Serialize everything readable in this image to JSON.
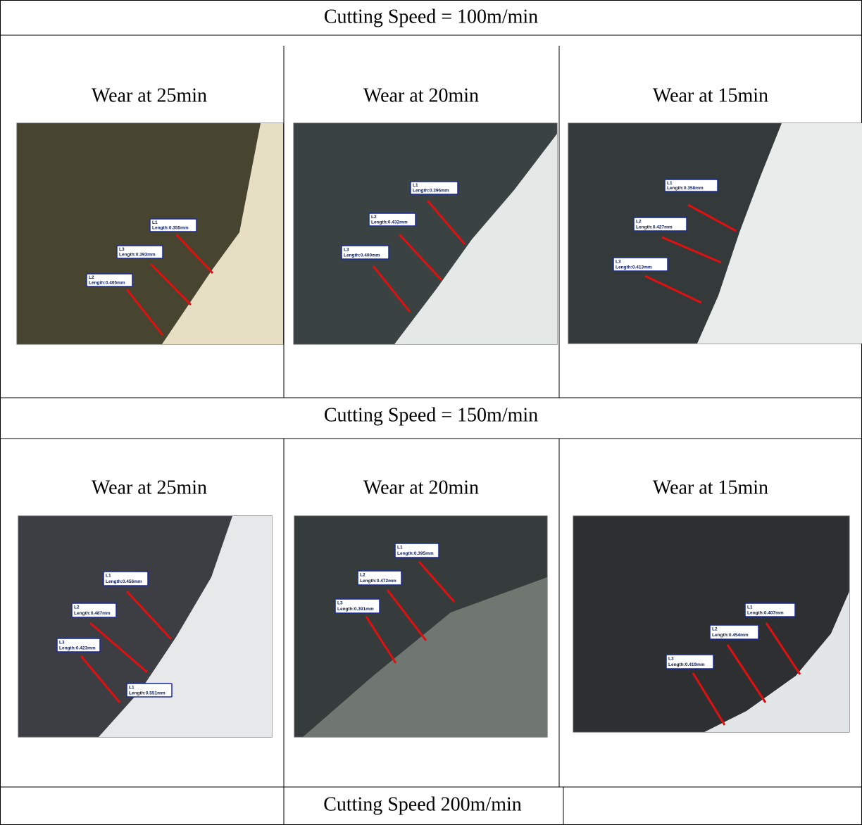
{
  "sections": [
    {
      "heading": "Cutting Speed = 100m/min",
      "panels": [
        {
          "caption": "Wear at 25min",
          "measurements": [
            {
              "name": "L1",
              "text": "Length:0.355mm"
            },
            {
              "name": "L3",
              "text": "Length:0.393mm"
            },
            {
              "name": "L2",
              "text": "Length:0.405mm"
            }
          ]
        },
        {
          "caption": "Wear at 20min",
          "measurements": [
            {
              "name": "L1",
              "text": "Length:0.396mm"
            },
            {
              "name": "L2",
              "text": "Length:0.432mm"
            },
            {
              "name": "L3",
              "text": "Length:0.400mm"
            }
          ]
        },
        {
          "caption": "Wear at 15min",
          "measurements": [
            {
              "name": "L1",
              "text": "Length:0.358mm"
            },
            {
              "name": "L2",
              "text": "Length:0.427mm"
            },
            {
              "name": "L3",
              "text": "Length:0.413mm"
            }
          ]
        }
      ]
    },
    {
      "heading": "Cutting Speed = 150m/min",
      "panels": [
        {
          "caption": "Wear at 25min",
          "measurements": [
            {
              "name": "L1",
              "text": "Length:0.456mm"
            },
            {
              "name": "L2",
              "text": "Length:0.487mm"
            },
            {
              "name": "L3",
              "text": "Length:0.423mm"
            },
            {
              "name": "L1",
              "text": "Length:0.551mm"
            }
          ]
        },
        {
          "caption": "Wear at 20min",
          "measurements": [
            {
              "name": "L1",
              "text": "Length:0.395mm"
            },
            {
              "name": "L2",
              "text": "Length:0.472mm"
            },
            {
              "name": "L3",
              "text": "Length:0.391mm"
            }
          ]
        },
        {
          "caption": "Wear at 15min",
          "measurements": [
            {
              "name": "L1",
              "text": "Length:0.407mm"
            },
            {
              "name": "L2",
              "text": "Length:0.454mm"
            },
            {
              "name": "L3",
              "text": "Length:0.419mm"
            }
          ]
        }
      ]
    },
    {
      "heading": "Cutting Speed 200m/min"
    }
  ]
}
